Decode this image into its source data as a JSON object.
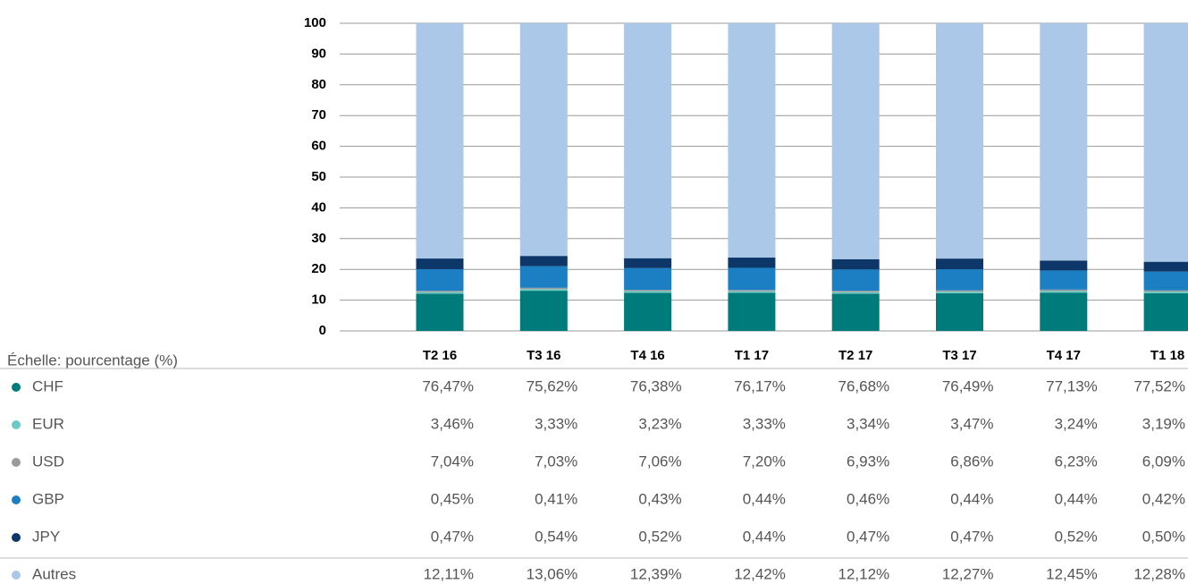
{
  "chart_data": {
    "type": "bar",
    "stacked": true,
    "note": "Échelle: pourcentage (%)",
    "categories": [
      "T2 16",
      "T3 16",
      "T4 16",
      "T1 17",
      "T2 17",
      "T3 17",
      "T4 17",
      "T1 18"
    ],
    "series": [
      {
        "name": "CHF",
        "color": "#007b7b",
        "values": [
          76.47,
          75.62,
          76.38,
          76.17,
          76.68,
          76.49,
          77.13,
          77.52
        ],
        "value_labels": [
          "76,47%",
          "75,62%",
          "76,38%",
          "76,17%",
          "76,68%",
          "76,49%",
          "77,13%",
          "77,52%"
        ]
      },
      {
        "name": "EUR",
        "color": "#6ccac4",
        "values": [
          3.46,
          3.33,
          3.23,
          3.33,
          3.34,
          3.47,
          3.24,
          3.19
        ],
        "value_labels": [
          "3,46%",
          "3,33%",
          "3,23%",
          "3,33%",
          "3,34%",
          "3,47%",
          "3,24%",
          "3,19%"
        ]
      },
      {
        "name": "USD",
        "color": "#9b9b9b",
        "values": [
          7.04,
          7.03,
          7.06,
          7.2,
          6.93,
          6.86,
          6.23,
          6.09
        ],
        "value_labels": [
          "7,04%",
          "7,03%",
          "7,06%",
          "7,20%",
          "6,93%",
          "6,86%",
          "6,23%",
          "6,09%"
        ]
      },
      {
        "name": "GBP",
        "color": "#1c7fc3",
        "values": [
          0.45,
          0.41,
          0.43,
          0.44,
          0.46,
          0.44,
          0.44,
          0.42
        ],
        "value_labels": [
          "0,45%",
          "0,41%",
          "0,43%",
          "0,44%",
          "0,46%",
          "0,44%",
          "0,44%",
          "0,42%"
        ]
      },
      {
        "name": "JPY",
        "color": "#0c3768",
        "values": [
          0.47,
          0.54,
          0.52,
          0.44,
          0.47,
          0.47,
          0.52,
          0.5
        ],
        "value_labels": [
          "0,47%",
          "0,54%",
          "0,52%",
          "0,44%",
          "0,47%",
          "0,47%",
          "0,52%",
          "0,50%"
        ]
      },
      {
        "name": "Autres",
        "color": "#abc8e8",
        "values": [
          12.11,
          13.06,
          12.39,
          12.42,
          12.12,
          12.27,
          12.45,
          12.28
        ],
        "value_labels": [
          "12,11%",
          "13,06%",
          "12,39%",
          "12,42%",
          "12,12%",
          "12,27%",
          "12,45%",
          "12,28%"
        ]
      }
    ],
    "ylim": [
      0,
      100
    ],
    "yticks": [
      0,
      10,
      20,
      30,
      40,
      50,
      60,
      70,
      80,
      90,
      100
    ],
    "grid": true
  }
}
